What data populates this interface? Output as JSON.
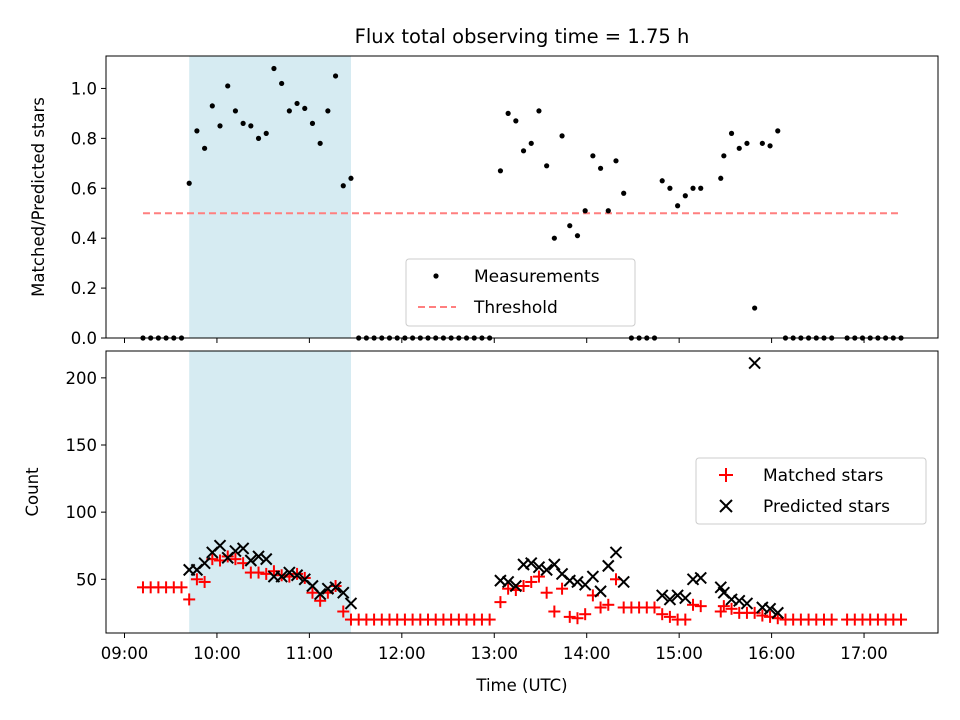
{
  "chart_data": [
    {
      "type": "scatter",
      "title": "Flux total observing time = 1.75 h",
      "xlabel": "",
      "ylabel": "Matched/Predicted stars",
      "xlim": [
        "08:48",
        "17:48"
      ],
      "ylim": [
        0,
        1.13
      ],
      "y_ticks": [
        "0.0",
        "0.2",
        "0.4",
        "0.6",
        "0.8",
        "1.0"
      ],
      "shaded_interval": {
        "start": "09:42",
        "end": "11:27",
        "color": "#add8e6"
      },
      "threshold": {
        "name": "Threshold",
        "value": 0.5,
        "x_start": "09:12",
        "x_end": "17:24",
        "color": "#ff7f7f",
        "style": "dashed"
      },
      "series": [
        {
          "name": "Measurements",
          "marker": "dot",
          "color": "#000000",
          "points": [
            [
              "09:12",
              0
            ],
            [
              "09:17",
              0
            ],
            [
              "09:22",
              0
            ],
            [
              "09:27",
              0
            ],
            [
              "09:32",
              0
            ],
            [
              "09:37",
              0
            ],
            [
              "09:42",
              0.62
            ],
            [
              "09:47",
              0.83
            ],
            [
              "09:52",
              0.76
            ],
            [
              "09:57",
              0.93
            ],
            [
              "10:02",
              0.85
            ],
            [
              "10:07",
              1.01
            ],
            [
              "10:12",
              0.91
            ],
            [
              "10:17",
              0.86
            ],
            [
              "10:22",
              0.85
            ],
            [
              "10:27",
              0.8
            ],
            [
              "10:32",
              0.82
            ],
            [
              "10:37",
              1.08
            ],
            [
              "10:42",
              1.02
            ],
            [
              "10:47",
              0.91
            ],
            [
              "10:52",
              0.94
            ],
            [
              "10:57",
              0.92
            ],
            [
              "11:02",
              0.86
            ],
            [
              "11:07",
              0.78
            ],
            [
              "11:12",
              0.91
            ],
            [
              "11:17",
              1.05
            ],
            [
              "11:22",
              0.61
            ],
            [
              "11:27",
              0.64
            ],
            [
              "11:32",
              0
            ],
            [
              "11:37",
              0
            ],
            [
              "11:42",
              0
            ],
            [
              "11:47",
              0
            ],
            [
              "11:52",
              0
            ],
            [
              "11:57",
              0
            ],
            [
              "12:02",
              0
            ],
            [
              "12:07",
              0
            ],
            [
              "12:12",
              0
            ],
            [
              "12:17",
              0
            ],
            [
              "12:22",
              0
            ],
            [
              "12:27",
              0
            ],
            [
              "12:32",
              0
            ],
            [
              "12:37",
              0
            ],
            [
              "12:42",
              0
            ],
            [
              "12:47",
              0
            ],
            [
              "12:52",
              0
            ],
            [
              "12:57",
              0
            ],
            [
              "13:04",
              0.67
            ],
            [
              "13:09",
              0.9
            ],
            [
              "13:14",
              0.87
            ],
            [
              "13:19",
              0.75
            ],
            [
              "13:24",
              0.78
            ],
            [
              "13:29",
              0.91
            ],
            [
              "13:34",
              0.69
            ],
            [
              "13:39",
              0.4
            ],
            [
              "13:44",
              0.81
            ],
            [
              "13:49",
              0.45
            ],
            [
              "13:54",
              0.41
            ],
            [
              "13:59",
              0.51
            ],
            [
              "14:04",
              0.73
            ],
            [
              "14:09",
              0.68
            ],
            [
              "14:14",
              0.51
            ],
            [
              "14:19",
              0.71
            ],
            [
              "14:24",
              0.58
            ],
            [
              "14:29",
              0
            ],
            [
              "14:34",
              0
            ],
            [
              "14:39",
              0
            ],
            [
              "14:44",
              0
            ],
            [
              "14:49",
              0.63
            ],
            [
              "14:54",
              0.6
            ],
            [
              "14:59",
              0.53
            ],
            [
              "15:04",
              0.57
            ],
            [
              "15:09",
              0.6
            ],
            [
              "15:14",
              0.6
            ],
            [
              "15:27",
              0.64
            ],
            [
              "15:29",
              0.73
            ],
            [
              "15:34",
              0.82
            ],
            [
              "15:39",
              0.76
            ],
            [
              "15:44",
              0.78
            ],
            [
              "15:49",
              0.12
            ],
            [
              "15:54",
              0.78
            ],
            [
              "15:59",
              0.77
            ],
            [
              "16:04",
              0.83
            ],
            [
              "16:09",
              0
            ],
            [
              "16:14",
              0
            ],
            [
              "16:19",
              0
            ],
            [
              "16:24",
              0
            ],
            [
              "16:29",
              0
            ],
            [
              "16:34",
              0
            ],
            [
              "16:39",
              0
            ],
            [
              "16:49",
              0
            ],
            [
              "16:54",
              0
            ],
            [
              "16:59",
              0
            ],
            [
              "17:04",
              0
            ],
            [
              "17:09",
              0
            ],
            [
              "17:14",
              0
            ],
            [
              "17:19",
              0
            ],
            [
              "17:24",
              0
            ]
          ]
        }
      ],
      "legend": {
        "placement": "bottom-center",
        "entries": [
          "Measurements",
          "Threshold"
        ]
      }
    },
    {
      "type": "scatter",
      "title": "",
      "xlabel": "Time (UTC)",
      "ylabel": "Count",
      "xlim": [
        "08:48",
        "17:48"
      ],
      "ylim": [
        10,
        220
      ],
      "x_ticks": [
        "09:00",
        "10:00",
        "11:00",
        "12:00",
        "13:00",
        "14:00",
        "15:00",
        "16:00",
        "17:00"
      ],
      "y_ticks": [
        "50",
        "100",
        "150",
        "200"
      ],
      "shaded_interval": {
        "start": "09:42",
        "end": "11:27",
        "color": "#add8e6"
      },
      "series": [
        {
          "name": "Matched stars",
          "marker": "plus",
          "color": "#ff0000",
          "points": [
            [
              "09:12",
              44
            ],
            [
              "09:17",
              44
            ],
            [
              "09:22",
              44
            ],
            [
              "09:27",
              44
            ],
            [
              "09:32",
              44
            ],
            [
              "09:37",
              44
            ],
            [
              "09:42",
              35
            ],
            [
              "09:47",
              50
            ],
            [
              "09:52",
              48
            ],
            [
              "09:57",
              65
            ],
            [
              "10:02",
              64
            ],
            [
              "10:07",
              67
            ],
            [
              "10:12",
              65
            ],
            [
              "10:17",
              62
            ],
            [
              "10:22",
              55
            ],
            [
              "10:27",
              55
            ],
            [
              "10:32",
              54
            ],
            [
              "10:37",
              56
            ],
            [
              "10:42",
              53
            ],
            [
              "10:47",
              52
            ],
            [
              "10:52",
              54
            ],
            [
              "10:57",
              51
            ],
            [
              "11:02",
              40
            ],
            [
              "11:07",
              34
            ],
            [
              "11:12",
              40
            ],
            [
              "11:17",
              45
            ],
            [
              "11:22",
              26
            ],
            [
              "11:27",
              20
            ],
            [
              "11:32",
              20
            ],
            [
              "11:37",
              20
            ],
            [
              "11:42",
              20
            ],
            [
              "11:47",
              20
            ],
            [
              "11:52",
              20
            ],
            [
              "11:57",
              20
            ],
            [
              "12:02",
              20
            ],
            [
              "12:07",
              20
            ],
            [
              "12:12",
              20
            ],
            [
              "12:17",
              20
            ],
            [
              "12:22",
              20
            ],
            [
              "12:27",
              20
            ],
            [
              "12:32",
              20
            ],
            [
              "12:37",
              20
            ],
            [
              "12:42",
              20
            ],
            [
              "12:47",
              20
            ],
            [
              "12:52",
              20
            ],
            [
              "12:57",
              20
            ],
            [
              "13:04",
              33
            ],
            [
              "13:09",
              43
            ],
            [
              "13:14",
              42
            ],
            [
              "13:19",
              45
            ],
            [
              "13:24",
              48
            ],
            [
              "13:29",
              52
            ],
            [
              "13:34",
              40
            ],
            [
              "13:39",
              26
            ],
            [
              "13:44",
              43
            ],
            [
              "13:49",
              22
            ],
            [
              "13:54",
              21
            ],
            [
              "13:59",
              24
            ],
            [
              "14:04",
              38
            ],
            [
              "14:09",
              29
            ],
            [
              "14:14",
              31
            ],
            [
              "14:19",
              50
            ],
            [
              "14:24",
              29
            ],
            [
              "14:29",
              29
            ],
            [
              "14:34",
              29
            ],
            [
              "14:39",
              29
            ],
            [
              "14:44",
              29
            ],
            [
              "14:49",
              24
            ],
            [
              "14:54",
              22
            ],
            [
              "14:59",
              20
            ],
            [
              "15:04",
              20
            ],
            [
              "15:09",
              31
            ],
            [
              "15:14",
              30
            ],
            [
              "15:27",
              26
            ],
            [
              "15:29",
              30
            ],
            [
              "15:34",
              28
            ],
            [
              "15:39",
              25
            ],
            [
              "15:44",
              25
            ],
            [
              "15:49",
              25
            ],
            [
              "15:54",
              23
            ],
            [
              "15:59",
              22
            ],
            [
              "16:04",
              21
            ],
            [
              "16:09",
              20
            ],
            [
              "16:14",
              20
            ],
            [
              "16:19",
              20
            ],
            [
              "16:24",
              20
            ],
            [
              "16:29",
              20
            ],
            [
              "16:34",
              20
            ],
            [
              "16:39",
              20
            ],
            [
              "16:49",
              20
            ],
            [
              "16:54",
              20
            ],
            [
              "16:59",
              20
            ],
            [
              "17:04",
              20
            ],
            [
              "17:09",
              20
            ],
            [
              "17:14",
              20
            ],
            [
              "17:19",
              20
            ],
            [
              "17:24",
              20
            ]
          ]
        },
        {
          "name": "Predicted stars",
          "marker": "x",
          "color": "#000000",
          "points": [
            [
              "09:42",
              57
            ],
            [
              "09:47",
              57
            ],
            [
              "09:52",
              62
            ],
            [
              "09:57",
              70
            ],
            [
              "10:02",
              75
            ],
            [
              "10:07",
              66
            ],
            [
              "10:12",
              71
            ],
            [
              "10:17",
              73
            ],
            [
              "10:22",
              64
            ],
            [
              "10:27",
              67
            ],
            [
              "10:32",
              65
            ],
            [
              "10:37",
              52
            ],
            [
              "10:42",
              52
            ],
            [
              "10:47",
              55
            ],
            [
              "10:52",
              53
            ],
            [
              "10:57",
              50
            ],
            [
              "11:02",
              45
            ],
            [
              "11:07",
              39
            ],
            [
              "11:12",
              43
            ],
            [
              "11:17",
              44
            ],
            [
              "11:22",
              40
            ],
            [
              "11:27",
              32
            ],
            [
              "13:04",
              49
            ],
            [
              "13:09",
              48
            ],
            [
              "13:14",
              45
            ],
            [
              "13:19",
              61
            ],
            [
              "13:24",
              62
            ],
            [
              "13:29",
              59
            ],
            [
              "13:34",
              57
            ],
            [
              "13:39",
              61
            ],
            [
              "13:44",
              54
            ],
            [
              "13:49",
              49
            ],
            [
              "13:54",
              48
            ],
            [
              "13:59",
              46
            ],
            [
              "14:04",
              52
            ],
            [
              "14:09",
              41
            ],
            [
              "14:14",
              60
            ],
            [
              "14:19",
              70
            ],
            [
              "14:24",
              48
            ],
            [
              "14:49",
              38
            ],
            [
              "14:54",
              35
            ],
            [
              "14:59",
              38
            ],
            [
              "15:04",
              36
            ],
            [
              "15:09",
              50
            ],
            [
              "15:14",
              51
            ],
            [
              "15:27",
              44
            ],
            [
              "15:29",
              40
            ],
            [
              "15:34",
              35
            ],
            [
              "15:39",
              34
            ],
            [
              "15:44",
              32
            ],
            [
              "15:49",
              211
            ],
            [
              "15:54",
              29
            ],
            [
              "15:59",
              28
            ],
            [
              "16:04",
              25
            ]
          ]
        }
      ],
      "legend": {
        "placement": "center-right",
        "entries": [
          "Matched stars",
          "Predicted stars"
        ]
      }
    }
  ]
}
